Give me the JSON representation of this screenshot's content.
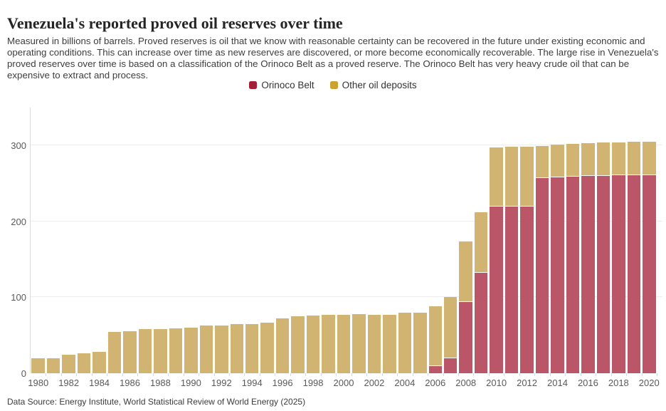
{
  "header": {
    "title": "Venezuela's reported proved oil reserves over time",
    "subtitle": "Measured in billions of barrels. Proved reserves is oil that we know with reasonable certainty can be recovered in the future under existing economic and operating conditions. This can increase over time as new reserves are discovered, or more become economically recoverable. The large rise in Venezuela's proved reserves over time is based on a classification of the Orinoco Belt as a proved reserve. The Orinoco Belt has very heavy crude oil that can be expensive to extract and process."
  },
  "legend": {
    "items": [
      {
        "label": "Orinoco Belt",
        "swatch_color": "#a41e35",
        "bar_color": "#bb5568"
      },
      {
        "label": "Other oil deposits",
        "swatch_color": "#c9a22f",
        "bar_color": "#d2b472"
      }
    ]
  },
  "footer": {
    "source": "Data Source: Energy Institute, World Statistical Review of World Energy (2025)"
  },
  "chart_data": {
    "type": "bar",
    "stacked": true,
    "title": "Venezuela's reported proved oil reserves over time",
    "unit": "billions of barrels",
    "x": [
      1980,
      1981,
      1982,
      1983,
      1984,
      1985,
      1986,
      1987,
      1988,
      1989,
      1990,
      1991,
      1992,
      1993,
      1994,
      1995,
      1996,
      1997,
      1998,
      1999,
      2000,
      2001,
      2002,
      2003,
      2004,
      2005,
      2006,
      2007,
      2008,
      2009,
      2010,
      2011,
      2012,
      2013,
      2014,
      2015,
      2016,
      2017,
      2018,
      2019,
      2020
    ],
    "series": [
      {
        "name": "Orinoco Belt",
        "bar_color": "#bb5568",
        "legend_color": "#a41e35",
        "values": [
          0,
          0,
          0,
          0,
          0,
          0,
          0,
          0,
          0,
          0,
          0,
          0,
          0,
          0,
          0,
          0,
          0,
          0,
          0,
          0,
          0,
          0,
          0,
          0,
          0,
          0,
          9,
          20,
          94,
          132,
          220,
          220,
          220,
          257,
          258,
          259,
          260,
          260,
          261,
          261,
          261
        ]
      },
      {
        "name": "Other oil deposits",
        "bar_color": "#d2b472",
        "legend_color": "#c9a22f",
        "values": [
          19.5,
          19.9,
          24.6,
          25.9,
          28,
          54.5,
          55.5,
          58.1,
          58.5,
          59,
          60.1,
          62.6,
          63.3,
          64.4,
          64.9,
          66.3,
          72.7,
          74.9,
          76.1,
          76.8,
          76.8,
          77.7,
          77.3,
          77.2,
          79.7,
          80,
          78.3,
          79.4,
          78.3,
          79.2,
          76.5,
          77.6,
          77.7,
          41.4,
          42,
          41.9,
          42.3,
          43.2,
          42.3,
          42.8,
          42.8
        ]
      }
    ],
    "totals": [
      19.5,
      19.9,
      24.6,
      25.9,
      28,
      54.5,
      55.5,
      58.1,
      58.5,
      59,
      60.1,
      62.6,
      63.3,
      64.4,
      64.9,
      66.3,
      72.7,
      74.9,
      76.1,
      76.8,
      76.8,
      77.7,
      77.3,
      77.2,
      79.7,
      80,
      87.3,
      99.4,
      172.3,
      211.2,
      296.5,
      297.6,
      297.7,
      298.4,
      300,
      300.9,
      302.3,
      303.2,
      303.3,
      303.8,
      303.8
    ],
    "ylim": [
      0,
      350
    ],
    "yticks": [
      0,
      100,
      200,
      300
    ],
    "xtick_every": 2,
    "grid": true,
    "legend_position": "top-center"
  }
}
